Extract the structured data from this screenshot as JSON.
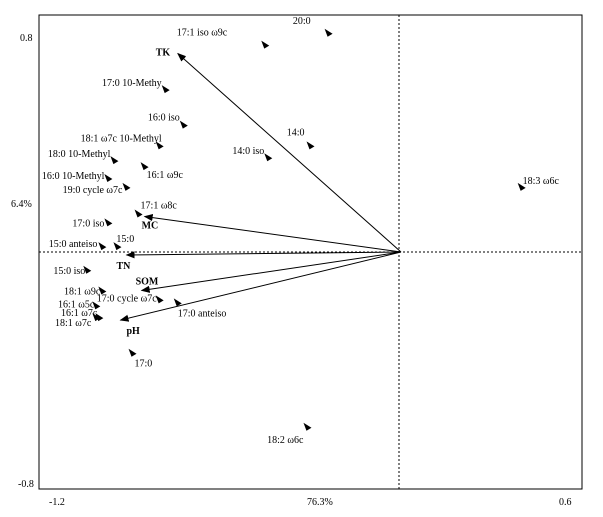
{
  "chart_data": {
    "type": "scatter",
    "subtype": "RDA biplot (species points + environmental variable arrows)",
    "title": "",
    "xlabel": "76.3%",
    "ylabel": "6.4%",
    "xlim": [
      -1.2,
      0.6
    ],
    "ylim": [
      -0.8,
      0.8
    ],
    "x_tick_labels": [
      "-1.2",
      "0.6"
    ],
    "y_tick_labels": [
      "0.8",
      "-0.8"
    ],
    "grid": false,
    "reference_lines": "dotted lines at x = 0 and y = 0",
    "origin": [
      0,
      0
    ],
    "env_vectors": [
      {
        "name": "TK",
        "x": -0.74,
        "y": 0.67
      },
      {
        "name": "MC",
        "x": -0.85,
        "y": 0.12
      },
      {
        "name": "TN",
        "x": -0.91,
        "y": -0.01
      },
      {
        "name": "SOM",
        "x": -0.86,
        "y": -0.13
      },
      {
        "name": "pH",
        "x": -0.93,
        "y": -0.23
      }
    ],
    "species": [
      {
        "name": "20:0",
        "x": -0.24,
        "y": 0.74
      },
      {
        "name": "17:1 iso ω9c",
        "x": -0.45,
        "y": 0.7
      },
      {
        "name": "17:0 10-Methy",
        "x": -0.78,
        "y": 0.55
      },
      {
        "name": "16:0 iso",
        "x": -0.72,
        "y": 0.43
      },
      {
        "name": "14:0",
        "x": -0.3,
        "y": 0.36
      },
      {
        "name": "18:1 ω7c 10-Methyl",
        "x": -0.8,
        "y": 0.36
      },
      {
        "name": "14:0 iso",
        "x": -0.44,
        "y": 0.32
      },
      {
        "name": "18:0 10-Methyl",
        "x": -0.95,
        "y": 0.31
      },
      {
        "name": "16:1 ω9c",
        "x": -0.85,
        "y": 0.29
      },
      {
        "name": "16:0 10-Methyl",
        "x": -0.97,
        "y": 0.25
      },
      {
        "name": "19:0 cycle ω7c",
        "x": -0.91,
        "y": 0.22
      },
      {
        "name": "17:1 ω8c",
        "x": -0.87,
        "y": 0.13
      },
      {
        "name": "17:0 iso",
        "x": -0.97,
        "y": 0.1
      },
      {
        "name": "15:0 anteiso",
        "x": -0.99,
        "y": 0.02
      },
      {
        "name": "15:0",
        "x": -0.94,
        "y": 0.02
      },
      {
        "name": "15:0 iso",
        "x": -1.04,
        "y": -0.06
      },
      {
        "name": "18:1 ω9c",
        "x": -0.99,
        "y": -0.13
      },
      {
        "name": "17:0 cycle ω7c",
        "x": -0.8,
        "y": -0.16
      },
      {
        "name": "16:1 ω5c",
        "x": -1.01,
        "y": -0.18
      },
      {
        "name": "16:1 ω7c",
        "x": -1.0,
        "y": -0.22
      },
      {
        "name": "18:1 ω7c",
        "x": -1.01,
        "y": -0.22
      },
      {
        "name": "17:0 anteiso",
        "x": -0.74,
        "y": -0.17
      },
      {
        "name": "17:0",
        "x": -0.89,
        "y": -0.34
      },
      {
        "name": "18:2 ω6c",
        "x": -0.31,
        "y": -0.59
      },
      {
        "name": "18:3 ω6c",
        "x": 0.4,
        "y": 0.22
      }
    ]
  }
}
